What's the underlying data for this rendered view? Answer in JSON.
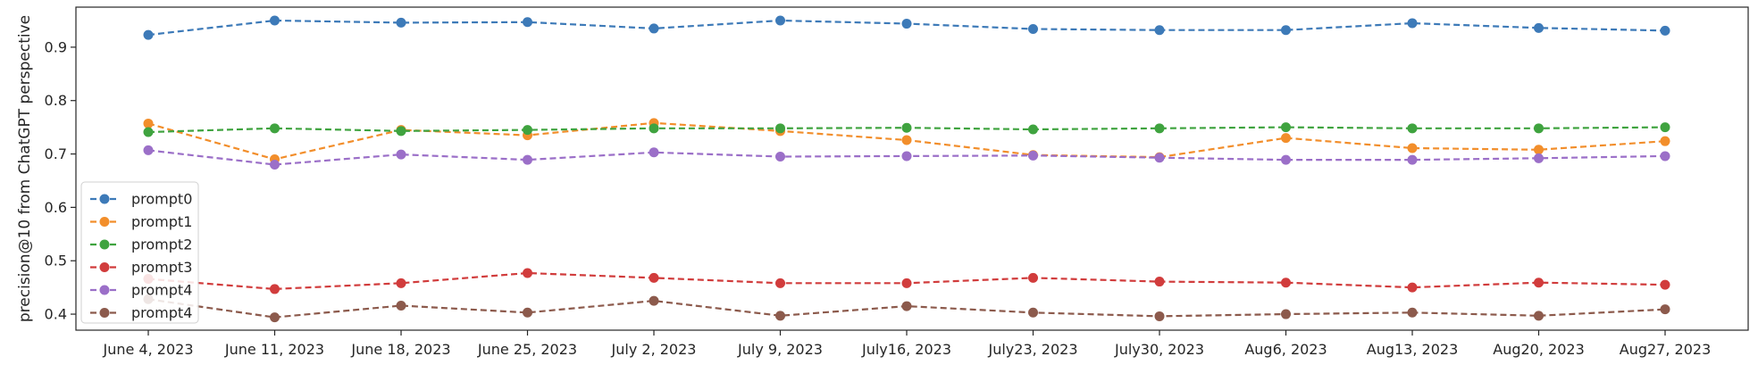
{
  "chart_data": {
    "type": "line",
    "ylabel": "precision@10 from ChatGPT perspective",
    "xlabel": "",
    "title": "",
    "categories": [
      "June 4, 2023",
      "June 11, 2023",
      "June 18, 2023",
      "June 25, 2023",
      "July 2, 2023",
      "July 9, 2023",
      "July16, 2023",
      "July23, 2023",
      "July30, 2023",
      "Aug6, 2023",
      "Aug13, 2023",
      "Aug20, 2023",
      "Aug27, 2023"
    ],
    "ylim": [
      0.37,
      0.975
    ],
    "yticks": [
      "0.4",
      "0.5",
      "0.6",
      "0.7",
      "0.8",
      "0.9"
    ],
    "grid": false,
    "legend_position": "lower-left",
    "line_style": "dashed",
    "marker": "circle",
    "series": [
      {
        "name": "prompt0",
        "color": "#3d7ab8",
        "values": [
          0.923,
          0.95,
          0.946,
          0.947,
          0.935,
          0.95,
          0.944,
          0.934,
          0.932,
          0.932,
          0.945,
          0.936,
          0.931
        ]
      },
      {
        "name": "prompt1",
        "color": "#f28e2b",
        "values": [
          0.757,
          0.69,
          0.745,
          0.735,
          0.758,
          0.743,
          0.726,
          0.698,
          0.694,
          0.73,
          0.711,
          0.708,
          0.724
        ]
      },
      {
        "name": "prompt2",
        "color": "#3fa33f",
        "values": [
          0.741,
          0.748,
          0.743,
          0.745,
          0.748,
          0.748,
          0.749,
          0.746,
          0.748,
          0.75,
          0.748,
          0.748,
          0.75
        ]
      },
      {
        "name": "prompt3",
        "color": "#d13c3c",
        "values": [
          0.466,
          0.447,
          0.458,
          0.477,
          0.468,
          0.458,
          0.458,
          0.468,
          0.461,
          0.459,
          0.45,
          0.459,
          0.455
        ]
      },
      {
        "name": "prompt4",
        "color": "#9b6fc8",
        "values": [
          0.707,
          0.68,
          0.699,
          0.689,
          0.703,
          0.695,
          0.696,
          0.697,
          0.693,
          0.689,
          0.689,
          0.692,
          0.696
        ]
      },
      {
        "name": "prompt4",
        "color": "#8c5a4c",
        "values": [
          0.428,
          0.394,
          0.416,
          0.403,
          0.425,
          0.397,
          0.415,
          0.403,
          0.396,
          0.4,
          0.403,
          0.397,
          0.409
        ]
      }
    ]
  }
}
